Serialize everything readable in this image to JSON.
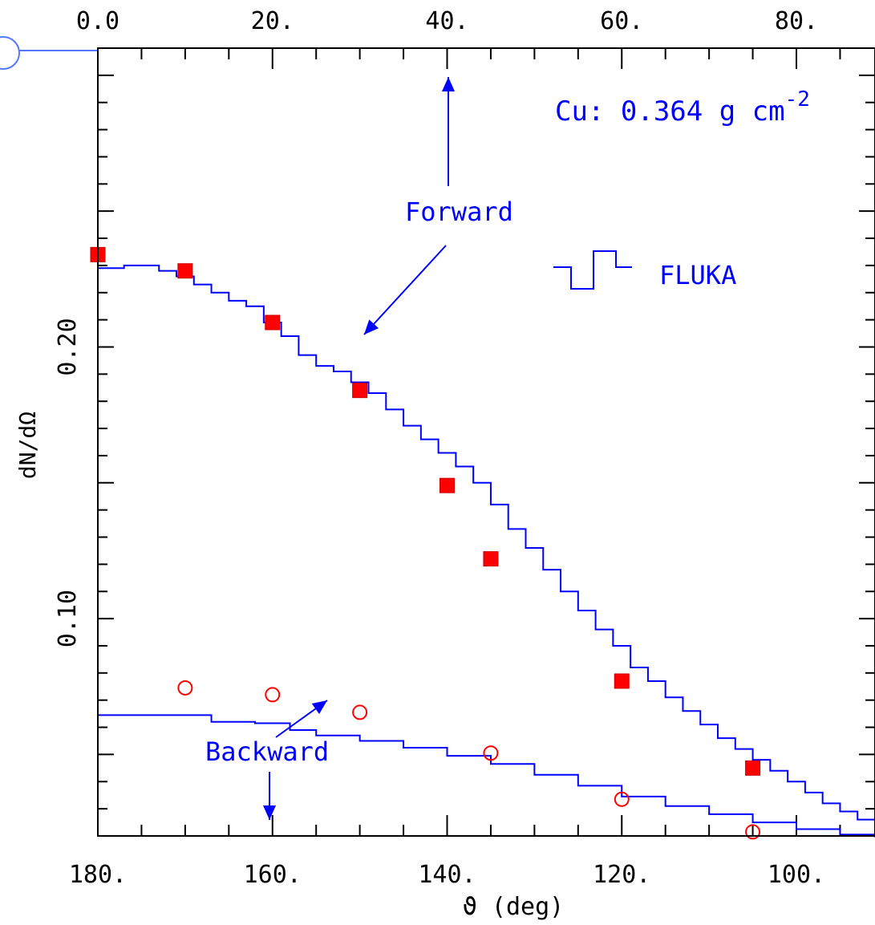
{
  "chart_data": {
    "type": "line",
    "xlabel": "ϑ (deg)",
    "ylabel": "dN/dΩ",
    "xlim_bottom": [
      180,
      91
    ],
    "xlim_top": [
      0,
      89
    ],
    "ylim": [
      0.02,
      0.31
    ],
    "bottom_ticks": [
      "180.",
      "160.",
      "140.",
      "120.",
      "100."
    ],
    "top_ticks": [
      "0.0",
      "20.",
      "40.",
      "60.",
      "80."
    ],
    "y_ticks": [
      "0.10",
      "0.20"
    ],
    "annotation": "Cu: 0.364 g cm",
    "annotation_sup": "-2",
    "legend_label": "FLUKA",
    "label_forward": "Forward",
    "label_backward": "Backward",
    "colors": {
      "sim": "#0000ff",
      "data": "#ff0000",
      "axes": "#000000"
    },
    "series": [
      {
        "name": "Forward",
        "marker": "filled-square",
        "x": [
          180,
          170,
          160,
          150,
          140,
          135,
          120,
          105
        ],
        "y": [
          0.234,
          0.228,
          0.209,
          0.184,
          0.149,
          0.122,
          0.077,
          0.045
        ]
      },
      {
        "name": "Backward",
        "marker": "open-circle",
        "x": [
          170,
          160,
          150,
          135,
          120,
          105
        ],
        "y": [
          0.0745,
          0.072,
          0.0655,
          0.0505,
          0.0335,
          0.0215
        ]
      },
      {
        "name": "FLUKA",
        "style": "step",
        "x": [
          180,
          177,
          175,
          173,
          171,
          169,
          167,
          165,
          163,
          161,
          159,
          157,
          155,
          153,
          151,
          149,
          147,
          145,
          143,
          141,
          139,
          137,
          135,
          133,
          131,
          129,
          127,
          125,
          123,
          121,
          119,
          117,
          115,
          113,
          111,
          109,
          107,
          105,
          103,
          101,
          99,
          97,
          95,
          93,
          91
        ],
        "y": [
          0.229,
          0.23,
          0.23,
          0.228,
          0.226,
          0.223,
          0.22,
          0.217,
          0.215,
          0.209,
          0.204,
          0.197,
          0.193,
          0.191,
          0.187,
          0.183,
          0.177,
          0.171,
          0.166,
          0.161,
          0.156,
          0.15,
          0.142,
          0.133,
          0.126,
          0.118,
          0.11,
          0.103,
          0.096,
          0.09,
          0.082,
          0.077,
          0.071,
          0.066,
          0.061,
          0.056,
          0.052,
          0.048,
          0.044,
          0.04,
          0.036,
          0.032,
          0.029,
          0.026,
          0.024
        ]
      },
      {
        "name": "FLUKA backward",
        "style": "step",
        "x": [
          180,
          170,
          167,
          162,
          158,
          155,
          150,
          145,
          140,
          135,
          130,
          125,
          120,
          115,
          110,
          105,
          100,
          95,
          91
        ],
        "y": [
          0.0645,
          0.0645,
          0.062,
          0.0615,
          0.059,
          0.057,
          0.055,
          0.0525,
          0.0495,
          0.0465,
          0.0425,
          0.0385,
          0.0345,
          0.031,
          0.028,
          0.025,
          0.0225,
          0.0205,
          0.0195
        ]
      }
    ]
  }
}
